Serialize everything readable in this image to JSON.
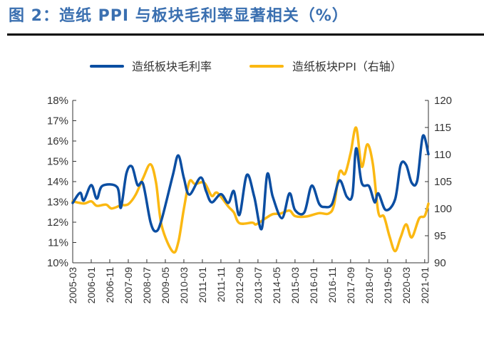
{
  "title": "图 2：造纸 PPI 与板块毛利率显著相关（%）",
  "chart_data": {
    "type": "line",
    "title": "图 2：造纸 PPI 与板块毛利率显著相关（%）",
    "left_axis": {
      "ylim": [
        10,
        18
      ],
      "ticks": [
        "10%",
        "11%",
        "12%",
        "13%",
        "14%",
        "15%",
        "16%",
        "17%",
        "18%"
      ]
    },
    "right_axis": {
      "ylim": [
        90,
        120
      ],
      "ticks": [
        "90",
        "95",
        "100",
        "105",
        "110",
        "115",
        "120"
      ]
    },
    "x_ticks": [
      "2005-03",
      "2006-01",
      "2006-11",
      "2007-09",
      "2008-07",
      "2009-05",
      "2010-03",
      "2011-01",
      "2011-11",
      "2012-09",
      "2013-07",
      "2014-05",
      "2015-03",
      "2016-01",
      "2016-11",
      "2017-09",
      "2018-07",
      "2019-05",
      "2020-03",
      "2021-01"
    ],
    "x_range": [
      "2005-03",
      "2021-03"
    ],
    "grid": false,
    "legend_position": "top",
    "series": [
      {
        "name": "造纸板块毛利率",
        "axis": "left",
        "color": "#0b4ea2",
        "x": [
          "2005-03",
          "2005-07",
          "2005-09",
          "2006-01",
          "2006-04",
          "2006-07",
          "2007-03",
          "2007-05",
          "2007-08",
          "2007-11",
          "2008-02",
          "2008-05",
          "2008-09",
          "2008-12",
          "2009-03",
          "2009-09",
          "2009-12",
          "2010-03",
          "2010-06",
          "2010-12",
          "2011-03",
          "2011-06",
          "2011-11",
          "2012-03",
          "2012-06",
          "2012-09",
          "2013-01",
          "2013-05",
          "2013-09",
          "2013-12",
          "2014-03",
          "2014-08",
          "2014-12",
          "2015-03",
          "2015-08",
          "2015-12",
          "2016-04",
          "2016-07",
          "2016-11",
          "2017-03",
          "2017-07",
          "2017-10",
          "2017-12",
          "2018-03",
          "2018-07",
          "2018-10",
          "2018-12",
          "2019-04",
          "2019-09",
          "2019-12",
          "2020-03",
          "2020-06",
          "2020-09",
          "2020-12",
          "2021-03"
        ],
        "y": [
          12.95,
          13.45,
          13.07,
          13.83,
          13.16,
          13.79,
          13.73,
          12.71,
          14.41,
          14.74,
          13.83,
          13.88,
          12.0,
          11.55,
          12.13,
          14.3,
          15.29,
          14.18,
          13.36,
          14.2,
          13.53,
          12.98,
          13.38,
          12.95,
          13.53,
          12.36,
          14.33,
          13.25,
          11.67,
          14.36,
          13.25,
          12.2,
          13.42,
          12.6,
          12.48,
          13.8,
          12.91,
          12.75,
          12.9,
          14.06,
          13.25,
          13.36,
          15.64,
          13.94,
          13.77,
          12.98,
          13.42,
          12.6,
          13.12,
          14.82,
          14.82,
          13.94,
          14.06,
          16.25,
          15.35
        ]
      },
      {
        "name": "造纸板块PPI（右轴）",
        "axis": "right",
        "color": "#fbb812",
        "x": [
          "2005-03",
          "2005-09",
          "2006-01",
          "2006-04",
          "2006-09",
          "2006-12",
          "2007-05",
          "2007-09",
          "2008-01",
          "2008-05",
          "2008-09",
          "2008-12",
          "2009-03",
          "2009-09",
          "2009-12",
          "2010-03",
          "2010-06",
          "2010-09",
          "2011-02",
          "2011-06",
          "2011-09",
          "2012-03",
          "2012-06",
          "2012-09",
          "2013-04",
          "2013-06",
          "2013-11",
          "2014-03",
          "2014-07",
          "2014-12",
          "2015-03",
          "2015-09",
          "2016-04",
          "2016-09",
          "2016-12",
          "2017-03",
          "2017-06",
          "2017-09",
          "2017-12",
          "2018-03",
          "2018-06",
          "2018-09",
          "2018-12",
          "2019-03",
          "2019-06",
          "2019-09",
          "2019-12",
          "2020-03",
          "2020-06",
          "2020-10",
          "2021-01",
          "2021-03"
        ],
        "y": [
          101.36,
          100.96,
          101.36,
          100.53,
          100.75,
          100.04,
          100.61,
          100.83,
          102.59,
          105.66,
          108.2,
          104.78,
          96.9,
          92.06,
          93.8,
          99.96,
          105.0,
          104.56,
          104.78,
          102.37,
          102.94,
          100.4,
          99.3,
          97.32,
          97.41,
          97.1,
          98.2,
          98.99,
          99.08,
          99.65,
          98.64,
          98.55,
          99.17,
          99.08,
          100.61,
          106.75,
          106.45,
          110.26,
          114.96,
          107.76,
          111.89,
          108.29,
          99.3,
          98.55,
          94.9,
          92.15,
          94.69,
          97.1,
          94.69,
          98.2,
          98.64,
          100.92
        ]
      }
    ]
  }
}
